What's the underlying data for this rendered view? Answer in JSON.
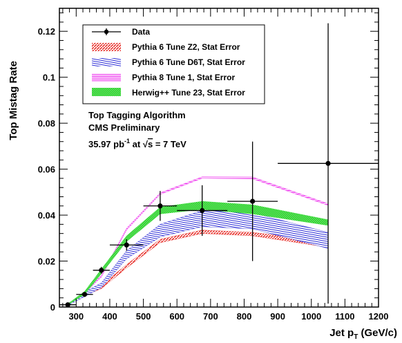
{
  "chart_data": {
    "type": "line",
    "ylabel": "Top Mistag Rate",
    "xlabel_main": "Jet p",
    "xlabel_sub": "T",
    "xlabel_unit": " (GeV/c)",
    "xlim": [
      250,
      1200
    ],
    "ylim": [
      0,
      0.13
    ],
    "x_ticks": [
      300,
      400,
      500,
      600,
      700,
      800,
      900,
      1000,
      1100,
      1200
    ],
    "x_tick_labels": [
      "300",
      "400",
      "500",
      "600",
      "700",
      "800",
      "900",
      "1000",
      "1100",
      "1200"
    ],
    "y_ticks": [
      0,
      0.02,
      0.04,
      0.06,
      0.08,
      0.1,
      0.12
    ],
    "y_tick_labels": [
      "0",
      "0.02",
      "0.04",
      "0.06",
      "0.08",
      "0.1",
      "0.12"
    ],
    "grid": false,
    "legend_placement": "top-left",
    "annotation": {
      "line1": "Top Tagging Algorithm",
      "line2": "CMS Preliminary",
      "lumi_value": "35.97 pb",
      "lumi_exp": "-1",
      "lumi_mid": " at ",
      "sqrt_s": "s",
      "energy": " = 7 TeV"
    },
    "data_series": {
      "name": "Data",
      "color": "#000000",
      "points": [
        {
          "x": 275,
          "y": 0.001,
          "xerr": 25,
          "yerr": 0.0005
        },
        {
          "x": 325,
          "y": 0.0055,
          "xerr": 25,
          "yerr": 0.001
        },
        {
          "x": 375,
          "y": 0.016,
          "xerr": 25,
          "yerr": 0.0015
        },
        {
          "x": 450,
          "y": 0.027,
          "xerr": 50,
          "yerr": 0.0025
        },
        {
          "x": 550,
          "y": 0.044,
          "xerr": 50,
          "yerr": 0.0065
        },
        {
          "x": 675,
          "y": 0.042,
          "xerr": 75,
          "yerr": 0.011
        },
        {
          "x": 825,
          "y": 0.046,
          "xerr": 75,
          "yerr": 0.026
        },
        {
          "x": 1050,
          "y": 0.0625,
          "xerr": 150,
          "yerr": 0.061
        }
      ]
    },
    "bands": [
      {
        "name": "Pythia 6 Tune Z2, Stat Error",
        "color": "#e8352f",
        "x": [
          275,
          325,
          375,
          450,
          550,
          675,
          825,
          1050
        ],
        "low": [
          0.0008,
          0.005,
          0.008,
          0.017,
          0.028,
          0.032,
          0.031,
          0.026
        ],
        "high": [
          0.0012,
          0.006,
          0.0095,
          0.0185,
          0.0295,
          0.0335,
          0.0325,
          0.0285
        ]
      },
      {
        "name": "Pythia 6 Tune D6T, Stat Error",
        "color": "#2b2bd6",
        "x": [
          275,
          325,
          375,
          450,
          550,
          675,
          825,
          1050
        ],
        "low": [
          0.0007,
          0.0045,
          0.0085,
          0.021,
          0.0305,
          0.035,
          0.034,
          0.0255
        ],
        "high": [
          0.0013,
          0.0065,
          0.0105,
          0.0245,
          0.036,
          0.042,
          0.041,
          0.0325
        ]
      },
      {
        "name": "Pythia 8 Tune 1, Stat Error",
        "color": "#ee33ee",
        "x": [
          275,
          325,
          375,
          450,
          550,
          675,
          825,
          1050
        ],
        "low": [
          0.001,
          0.006,
          0.013,
          0.0335,
          0.049,
          0.056,
          0.0558,
          0.0442
        ],
        "high": [
          0.0014,
          0.0067,
          0.0138,
          0.0343,
          0.0497,
          0.0567,
          0.0566,
          0.045
        ]
      },
      {
        "name": "Herwig++ Tune 23, Stat Error",
        "color": "#33dd33",
        "x": [
          275,
          325,
          375,
          450,
          550,
          675,
          825,
          1050
        ],
        "low": [
          0.0009,
          0.0055,
          0.0145,
          0.0285,
          0.0405,
          0.0425,
          0.0405,
          0.0355
        ],
        "high": [
          0.0014,
          0.0068,
          0.0165,
          0.031,
          0.0435,
          0.046,
          0.0445,
          0.038
        ]
      }
    ]
  }
}
